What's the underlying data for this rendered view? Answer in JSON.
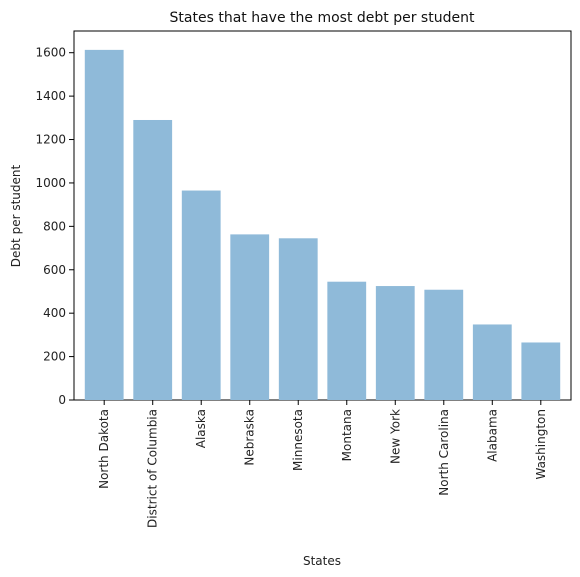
{
  "chart_data": {
    "type": "bar",
    "title": "States that have the most debt per student",
    "xlabel": "States",
    "ylabel": "Debt per student",
    "categories": [
      "North Dakota",
      "District of Columbia",
      "Alaska",
      "Nebraska",
      "Minnesota",
      "Montana",
      "New York",
      "North Carolina",
      "Alabama",
      "Washington"
    ],
    "values": [
      1613,
      1290,
      965,
      763,
      745,
      545,
      525,
      508,
      348,
      265
    ],
    "ylim": [
      0,
      1700
    ],
    "yticks": [
      0,
      200,
      400,
      600,
      800,
      1000,
      1200,
      1400,
      1600
    ],
    "bar_color": "#8fbad9",
    "grid": false,
    "legend": "none"
  }
}
